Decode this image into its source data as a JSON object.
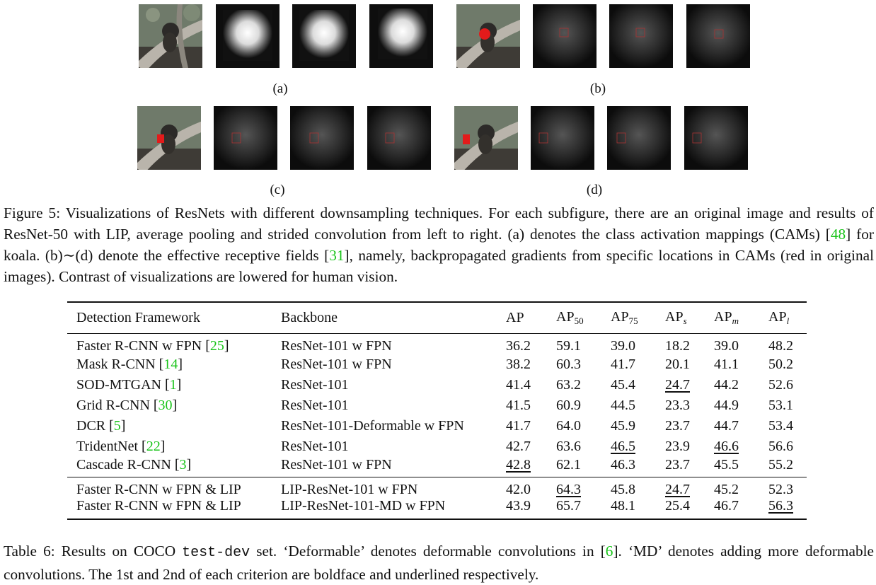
{
  "figure": {
    "subfigures": [
      {
        "label": "(a)",
        "type": "cam"
      },
      {
        "label": "(b)",
        "type": "erf"
      },
      {
        "label": "(c)",
        "type": "erf"
      },
      {
        "label": "(d)",
        "type": "erf"
      }
    ],
    "caption": {
      "p1": "Figure 5: Visualizations of ResNets with different downsampling techniques. For each subfigure, there are an original image and results of ResNet-50 with LIP, average pooling and strided convolution from left to right. (a) denotes the class activation mappings (CAMs) [",
      "ref1": "48",
      "p2": "] for koala. (b)∼(d) denote the effective receptive fields [",
      "ref2": "31",
      "p3": "], namely, backpropagated gradients from specific locations in CAMs (red in original images). Contrast of visualizations are lowered for human vision."
    }
  },
  "table": {
    "headers": {
      "framework": "Detection Framework",
      "backbone": "Backbone",
      "ap": "AP",
      "ap50_base": "AP",
      "ap50_sub": "50",
      "ap75_base": "AP",
      "ap75_sub": "75",
      "aps_base": "AP",
      "aps_sub": "s",
      "apm_base": "AP",
      "apm_sub": "m",
      "apl_base": "AP",
      "apl_sub": "l"
    },
    "rows": [
      {
        "name": "Faster R-CNN w FPN [",
        "ref": "25",
        "tail": "]",
        "backbone": "ResNet-101 w FPN",
        "ap": "36.2",
        "ap50": "59.1",
        "ap75": "39.0",
        "aps": "18.2",
        "apm": "39.0",
        "apl": "48.2"
      },
      {
        "name": "Mask R-CNN [",
        "ref": "14",
        "tail": "]",
        "backbone": "ResNet-101 w FPN",
        "ap": "38.2",
        "ap50": "60.3",
        "ap75": "41.7",
        "aps": "20.1",
        "apm": "41.1",
        "apl": "50.2"
      },
      {
        "name": "SOD-MTGAN [",
        "ref": "1",
        "tail": "]",
        "backbone": "ResNet-101",
        "ap": "41.4",
        "ap50": "63.2",
        "ap75": "45.4",
        "aps": "24.7",
        "apm": "44.2",
        "apl": "52.6"
      },
      {
        "name": "Grid R-CNN [",
        "ref": "30",
        "tail": "]",
        "backbone": "ResNet-101",
        "ap": "41.5",
        "ap50": "60.9",
        "ap75": "44.5",
        "aps": "23.3",
        "apm": "44.9",
        "apl": "53.1"
      },
      {
        "name": "DCR [",
        "ref": "5",
        "tail": "]",
        "backbone": "ResNet-101-Deformable w FPN",
        "ap": "41.7",
        "ap50": "64.0",
        "ap75": "45.9",
        "aps": "23.7",
        "apm": "44.7",
        "apl": "53.4"
      },
      {
        "name": "TridentNet [",
        "ref": "22",
        "tail": "]",
        "backbone": "ResNet-101",
        "ap": "42.7",
        "ap50": "63.6",
        "ap75": "46.5",
        "aps": "23.9",
        "apm": "46.6",
        "apl": "56.6"
      },
      {
        "name": "Cascade R-CNN [",
        "ref": "3",
        "tail": "]",
        "backbone": "ResNet-101 w FPN",
        "ap": "42.8",
        "ap50": "62.1",
        "ap75": "46.3",
        "aps": "23.7",
        "apm": "45.5",
        "apl": "55.2"
      }
    ],
    "ours": [
      {
        "name": "Faster R-CNN w FPN & LIP",
        "backbone": "LIP-ResNet-101 w FPN",
        "ap": "42.0",
        "ap50": "64.3",
        "ap75": "45.8",
        "aps": "24.7",
        "apm": "45.2",
        "apl": "52.3"
      },
      {
        "name": "Faster R-CNN w FPN & LIP",
        "backbone": "LIP-ResNet-101-MD w FPN",
        "ap": "43.9",
        "ap50": "65.7",
        "ap75": "48.1",
        "aps": "25.4",
        "apm": "46.7",
        "apl": "56.3"
      }
    ],
    "caption": {
      "p1": "Table 6: Results on COCO ",
      "mono": "test-dev",
      "p2": " set. ‘Deformable’ denotes deformable convolutions in [",
      "ref1": "6",
      "p3": "]. ‘MD’ denotes adding more deformable convolutions. The 1st and 2nd of each criterion are boldface and underlined respectively."
    }
  }
}
